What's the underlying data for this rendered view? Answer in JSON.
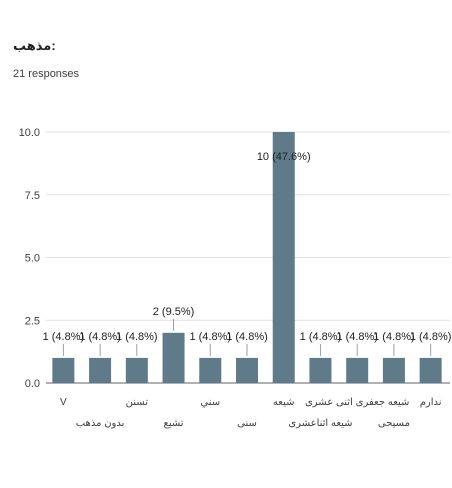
{
  "question": {
    "title": "مذهب:",
    "responses": "21 responses"
  },
  "colors": {
    "bar": "#5f7a88",
    "grid": "#e0e0e0",
    "axis": "#5f6368",
    "label": "#3c4043"
  },
  "chart_data": {
    "type": "bar",
    "title": "",
    "xlabel": "",
    "ylabel": "",
    "ylim": [
      0,
      10
    ],
    "yticks": [
      "0.0",
      "2.5",
      "5.0",
      "7.5",
      "10.0"
    ],
    "grid": true,
    "categories": [
      "V",
      "بدون مذهب",
      "تسنن",
      "تشیع",
      "سني",
      "سنی",
      "شیعه",
      "شیعه اثناعشری",
      "شیعه جعفری اثنی عشری",
      "مسیحی",
      "ندارم"
    ],
    "values": [
      1,
      1,
      1,
      2,
      1,
      1,
      10,
      1,
      1,
      1,
      1
    ],
    "data_labels": [
      "1 (4.8%)",
      "1 (4.8%)",
      "1 (4.8%)",
      "2 (9.5%)",
      "1 (4.8%)",
      "1 (4.8%)",
      "10 (47.6%)",
      "1 (4.8%)",
      "1 (4.8%)",
      "1 (4.8%)",
      "1 (4.8%)"
    ]
  }
}
